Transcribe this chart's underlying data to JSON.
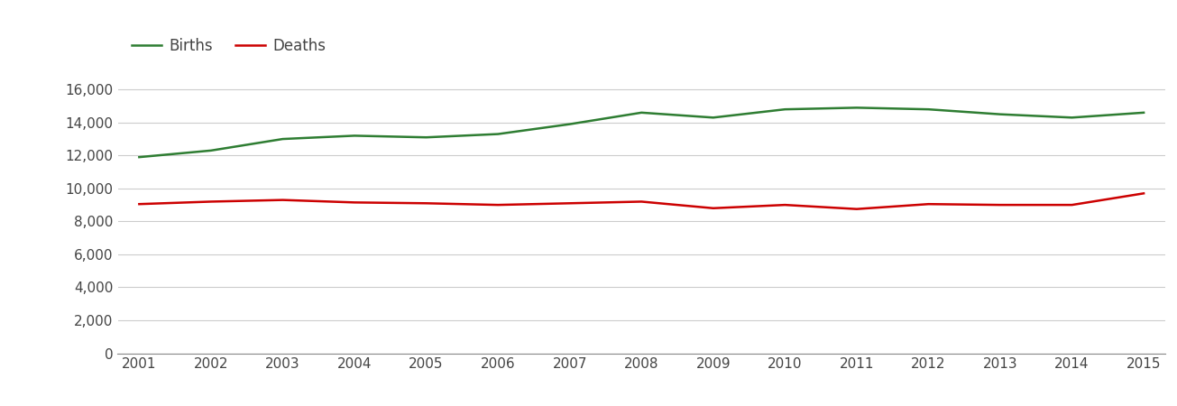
{
  "years": [
    2001,
    2002,
    2003,
    2004,
    2005,
    2006,
    2007,
    2008,
    2009,
    2010,
    2011,
    2012,
    2013,
    2014,
    2015
  ],
  "births": [
    11900,
    12300,
    13000,
    13200,
    13100,
    13300,
    13900,
    14600,
    14300,
    14800,
    14900,
    14800,
    14500,
    14300,
    14600
  ],
  "deaths": [
    9050,
    9200,
    9300,
    9150,
    9100,
    9000,
    9100,
    9200,
    8800,
    9000,
    8750,
    9050,
    9000,
    9000,
    9700
  ],
  "births_color": "#2e7d32",
  "deaths_color": "#cc0000",
  "line_width": 1.8,
  "ylim": [
    0,
    17000
  ],
  "yticks": [
    0,
    2000,
    4000,
    6000,
    8000,
    10000,
    12000,
    14000,
    16000
  ],
  "legend_labels": [
    "Births",
    "Deaths"
  ],
  "bg_color": "#ffffff",
  "grid_color": "#cccccc",
  "tick_label_color": "#444444",
  "tick_fontsize": 11,
  "legend_fontsize": 12
}
